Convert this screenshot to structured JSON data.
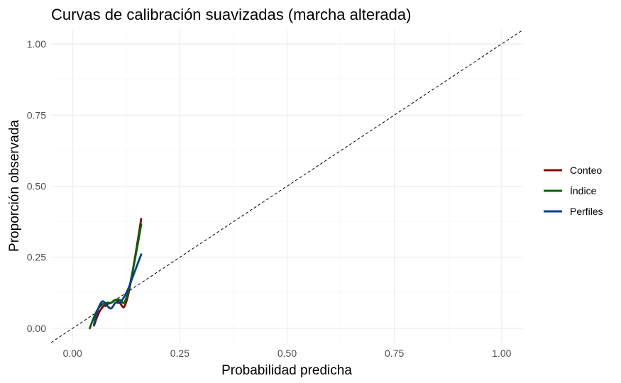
{
  "chart_data": {
    "type": "line",
    "title": "Curvas de calibración suavizadas (marcha alterada)",
    "xlabel": "Probabilidad predicha",
    "ylabel": "Proporción observada",
    "xlim": [
      -0.05,
      1.05
    ],
    "ylim": [
      -0.05,
      1.05
    ],
    "x_ticks": [
      0.0,
      0.25,
      0.5,
      0.75,
      1.0
    ],
    "x_tick_labels": [
      "0.00",
      "0.25",
      "0.50",
      "0.75",
      "1.00"
    ],
    "y_ticks": [
      0.0,
      0.25,
      0.5,
      0.75,
      1.0
    ],
    "y_tick_labels": [
      "0.00",
      "0.25",
      "0.50",
      "0.75",
      "1.00"
    ],
    "grid": true,
    "legend_position": "right",
    "reference_line": {
      "from": [
        -0.05,
        -0.05
      ],
      "to": [
        1.05,
        1.05
      ],
      "style": "dashed",
      "color": "#000000"
    },
    "series": [
      {
        "name": "Conteo",
        "color": "#8B0000",
        "x": [
          0.05,
          0.06,
          0.07,
          0.08,
          0.09,
          0.1,
          0.11,
          0.12,
          0.13,
          0.14,
          0.15,
          0.16
        ],
        "y": [
          0.01,
          0.05,
          0.075,
          0.085,
          0.09,
          0.1,
          0.09,
          0.075,
          0.12,
          0.2,
          0.29,
          0.385
        ]
      },
      {
        "name": "Índice",
        "color": "#006400",
        "x": [
          0.04,
          0.05,
          0.06,
          0.07,
          0.08,
          0.09,
          0.1,
          0.11,
          0.12,
          0.13,
          0.14,
          0.15,
          0.16
        ],
        "y": [
          0.0,
          0.04,
          0.07,
          0.085,
          0.09,
          0.09,
          0.1,
          0.1,
          0.09,
          0.13,
          0.2,
          0.28,
          0.365
        ]
      },
      {
        "name": "Perfiles",
        "color": "#003F8F",
        "x": [
          0.05,
          0.06,
          0.07,
          0.08,
          0.09,
          0.1,
          0.11,
          0.12,
          0.13,
          0.14,
          0.15,
          0.16
        ],
        "y": [
          0.015,
          0.07,
          0.095,
          0.08,
          0.07,
          0.09,
          0.09,
          0.11,
          0.14,
          0.18,
          0.22,
          0.26
        ]
      }
    ]
  }
}
